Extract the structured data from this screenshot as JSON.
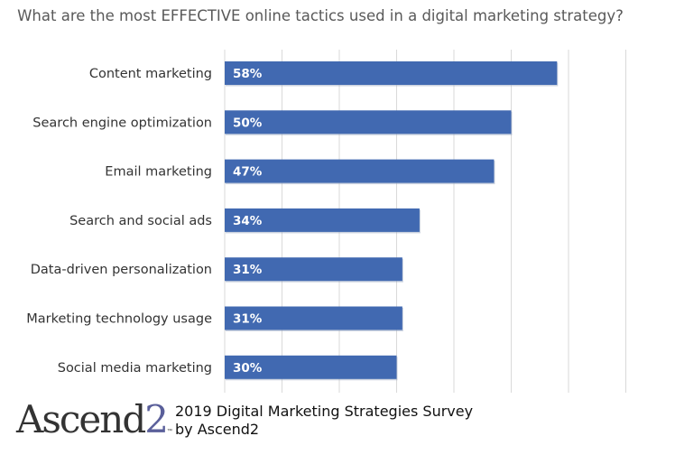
{
  "chart_data": {
    "type": "bar",
    "orientation": "horizontal",
    "title": "What are the most EFFECTIVE online tactics used in a digital marketing strategy?",
    "categories": [
      "Content marketing",
      "Search engine optimization",
      "Email marketing",
      "Search and social ads",
      "Data-driven personalization",
      "Marketing technology usage",
      "Social media marketing"
    ],
    "values": [
      58,
      50,
      47,
      34,
      31,
      31,
      30
    ],
    "data_labels": [
      "58%",
      "50%",
      "47%",
      "34%",
      "31%",
      "31%",
      "30%"
    ],
    "xlabel": "",
    "ylabel": "",
    "xlim": [
      0,
      70
    ],
    "grid": true,
    "bar_color": "#4169B1"
  },
  "footer": {
    "logo": "Ascend2",
    "source_line1": "2019 Digital Marketing Strategies Survey",
    "source_line2": "by Ascend2"
  }
}
